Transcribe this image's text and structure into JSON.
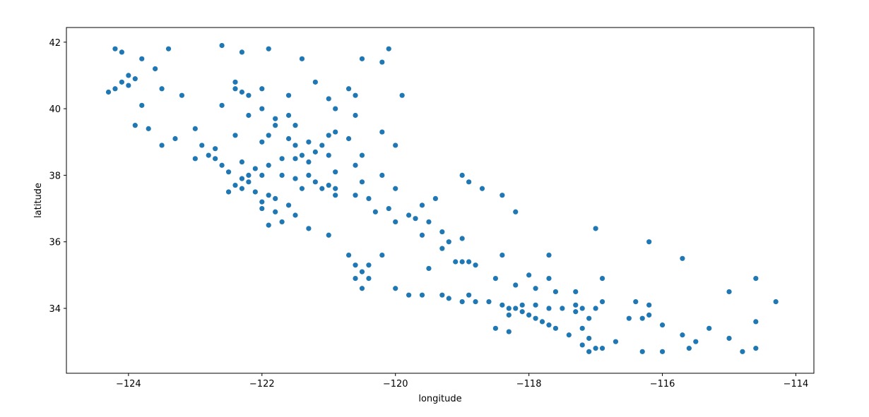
{
  "chart_data": {
    "type": "scatter",
    "xlabel": "longitude",
    "ylabel": "latitude",
    "color": "#1f77b4",
    "grid": false,
    "xlim": [
      -124.93,
      -113.73
    ],
    "ylim": [
      32.05,
      42.44
    ],
    "xticks": [
      {
        "value": -124,
        "label": "−124"
      },
      {
        "value": -122,
        "label": "−122"
      },
      {
        "value": -120,
        "label": "−120"
      },
      {
        "value": -118,
        "label": "−118"
      },
      {
        "value": -116,
        "label": "−116"
      },
      {
        "value": -114,
        "label": "−114"
      }
    ],
    "yticks": [
      34,
      36,
      38,
      40,
      42
    ],
    "x": [
      -124.2,
      -124.1,
      -124.1,
      -124.0,
      -124.2,
      -123.9,
      -124.3,
      -123.8,
      -123.6,
      -123.4,
      -122.6,
      -122.3,
      -121.9,
      -121.4,
      -120.5,
      -120.1,
      -120.2,
      -122.4,
      -122.3,
      -122.2,
      -122.4,
      -121.6,
      -121.0,
      -120.6,
      -120.9,
      -121.8,
      -121.6,
      -121.8,
      -122.2,
      -121.5,
      -121.6,
      -121.3,
      -121.1,
      -121.2,
      -121.4,
      -121.5,
      -121.3,
      -121.0,
      -120.7,
      -120.2,
      -120.0,
      -120.5,
      -120.6,
      -120.9,
      -121.3,
      -121.0,
      -120.9,
      -120.6,
      -120.4,
      -119.8,
      -119.7,
      -119.5,
      -119.3,
      -119.0,
      -119.1,
      -118.9,
      -119.6,
      -119.4,
      -120.1,
      -123.0,
      -123.3,
      -123.7,
      -122.8,
      -122.7,
      -122.6,
      -122.5,
      -122.3,
      -122.2,
      -122.3,
      -122.1,
      -121.9,
      -121.8,
      -122.0,
      -121.6,
      -122.4,
      -122.5,
      -122.0,
      -121.8,
      -121.7,
      -121.9,
      -121.5,
      -121.3,
      -121.0,
      -120.7,
      -120.6,
      -120.5,
      -120.4,
      -120.0,
      -119.8,
      -119.6,
      -119.2,
      -119.0,
      -118.8,
      -118.6,
      -118.4,
      -118.3,
      -118.2,
      -118.1,
      -118.0,
      -117.9,
      -117.8,
      -117.7,
      -118.3,
      -118.1,
      -117.9,
      -117.7,
      -117.5,
      -117.3,
      -117.2,
      -117.0,
      -117.3,
      -117.1,
      -117.2,
      -117.1,
      -117.0,
      -117.1,
      -116.9,
      -117.2,
      -116.7,
      -116.5,
      -116.3,
      -116.2,
      -116.0,
      -115.6,
      -115.5,
      -115.7,
      -114.6,
      -114.6,
      -114.3,
      -115.0,
      -116.2,
      -116.4,
      -116.9,
      -117.3,
      -117.6,
      -117.9,
      -118.2,
      -118.5,
      -118.0,
      -117.7,
      -117.7,
      -116.9,
      -117.0,
      -116.2,
      -115.7,
      -118.4,
      -118.7,
      -118.4,
      -118.2,
      -118.9,
      -119.0,
      -120.2,
      -120.0,
      -120.5,
      -121.0,
      -120.9,
      -121.7,
      -121.9,
      -122.1,
      -122.2,
      -122.0,
      -121.7,
      -121.5,
      -121.2,
      -121.4,
      -121.1,
      -120.9,
      -120.3,
      -120.0,
      -119.6,
      -119.2,
      -119.3,
      -119.0,
      -118.8,
      -118.9,
      -120.2,
      -120.4,
      -120.6,
      -120.5,
      -119.5,
      -119.3,
      -118.5,
      -118.3,
      -117.6,
      -117.4,
      -116.3,
      -116.0,
      -114.6,
      -114.8,
      -115.3,
      -115.0,
      -122.6,
      -122.0,
      -123.2,
      -123.8,
      -123.9,
      -123.5,
      -122.9,
      -122.4,
      -122.0,
      -122.7,
      -122.3,
      -123.0,
      -121.5,
      -121.9,
      -121.2,
      -122.0,
      -120.6,
      -119.9,
      -120.7,
      -124.0,
      -123.5
    ],
    "values": [
      41.8,
      41.7,
      40.8,
      40.7,
      40.6,
      40.9,
      40.5,
      41.5,
      41.2,
      41.8,
      41.9,
      41.7,
      41.8,
      41.5,
      41.5,
      41.8,
      41.4,
      40.6,
      40.5,
      40.4,
      40.8,
      40.4,
      40.3,
      40.4,
      40.0,
      39.7,
      39.8,
      39.5,
      39.8,
      39.5,
      39.1,
      39.0,
      38.9,
      38.7,
      38.6,
      38.5,
      38.4,
      39.2,
      39.1,
      39.3,
      38.9,
      38.6,
      38.3,
      38.1,
      38.0,
      37.7,
      37.6,
      37.4,
      37.3,
      36.8,
      36.7,
      36.6,
      36.3,
      36.1,
      35.4,
      35.4,
      37.1,
      37.3,
      37.0,
      39.4,
      39.1,
      39.4,
      38.6,
      38.5,
      38.3,
      38.1,
      37.9,
      37.8,
      37.6,
      37.5,
      37.4,
      37.3,
      37.2,
      37.1,
      37.7,
      37.5,
      37.0,
      36.9,
      36.6,
      36.5,
      36.8,
      36.4,
      36.2,
      35.6,
      35.3,
      35.1,
      34.9,
      34.6,
      34.4,
      34.4,
      34.3,
      34.2,
      34.2,
      34.2,
      34.1,
      34.0,
      34.0,
      33.9,
      33.8,
      33.7,
      33.6,
      33.5,
      33.8,
      34.1,
      34.1,
      34.0,
      34.0,
      34.1,
      34.0,
      34.0,
      33.9,
      33.7,
      33.4,
      33.1,
      32.8,
      32.7,
      32.8,
      32.9,
      33.0,
      33.7,
      33.7,
      33.8,
      33.5,
      32.8,
      33.0,
      33.2,
      33.6,
      34.9,
      34.2,
      34.5,
      34.1,
      34.2,
      34.2,
      34.5,
      34.5,
      34.6,
      34.7,
      34.9,
      35.0,
      35.6,
      34.9,
      34.9,
      36.4,
      36.0,
      35.5,
      35.6,
      37.6,
      37.4,
      36.9,
      37.8,
      38.0,
      38.0,
      37.6,
      37.8,
      38.6,
      39.3,
      38.5,
      38.3,
      38.2,
      38.0,
      38.0,
      38.0,
      37.9,
      37.8,
      37.6,
      37.6,
      37.4,
      36.9,
      36.6,
      36.2,
      36.0,
      35.8,
      35.4,
      35.3,
      34.4,
      35.6,
      35.3,
      34.9,
      34.6,
      35.2,
      34.4,
      33.4,
      33.3,
      33.4,
      33.2,
      32.7,
      32.7,
      32.8,
      32.7,
      33.4,
      33.1,
      40.1,
      40.0,
      40.4,
      40.1,
      39.5,
      38.9,
      38.9,
      39.2,
      39.0,
      38.8,
      38.4,
      38.5,
      38.9,
      39.2,
      40.8,
      40.6,
      39.8,
      40.4,
      40.6,
      41.0,
      40.6
    ]
  }
}
